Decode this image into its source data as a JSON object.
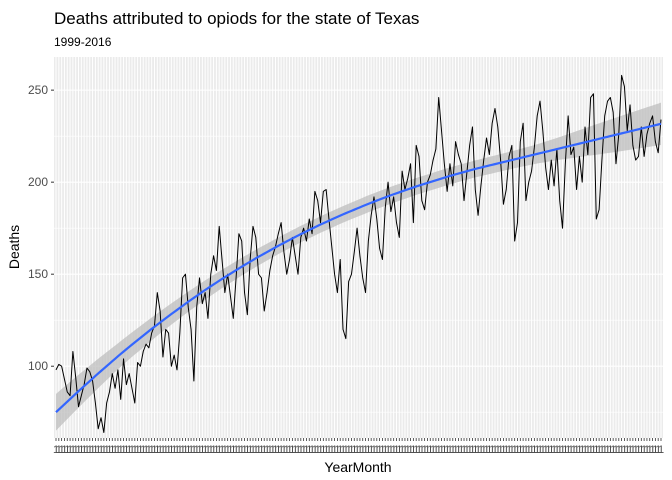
{
  "chart_data": {
    "type": "line",
    "title": "Deaths attributed to opiods for the state of Texas",
    "subtitle": "1999-2016",
    "xlabel": "YearMonth",
    "ylabel": "Deaths",
    "yticks": [
      100,
      150,
      200,
      250
    ],
    "ylim": [
      61,
      268
    ],
    "x_is_monthly_1999_2016": true,
    "n_months": 216,
    "grid": true,
    "panel_background": "#ebebeb",
    "line_color": "#000000",
    "smooth_color": "#3366ff",
    "ribbon_color": "#bdbdbd",
    "x_tick_label_text": "1",
    "series": [
      {
        "values": [
          98,
          101,
          100,
          93,
          86,
          84,
          108,
          94,
          78,
          84,
          90,
          99,
          97,
          92,
          80,
          66,
          72,
          64,
          80,
          86,
          96,
          88,
          98,
          82,
          104,
          90,
          96,
          88,
          80,
          102,
          100,
          108,
          112,
          110,
          118,
          122,
          140,
          130,
          105,
          120,
          118,
          100,
          106,
          98,
          118,
          148,
          150,
          132,
          120,
          92,
          132,
          148,
          134,
          140,
          126,
          150,
          160,
          152,
          176,
          158,
          140,
          150,
          138,
          126,
          148,
          172,
          168,
          140,
          128,
          158,
          176,
          170,
          150,
          148,
          130,
          140,
          152,
          160,
          165,
          172,
          178,
          162,
          150,
          158,
          170,
          160,
          150,
          170,
          175,
          168,
          180,
          172,
          195,
          190,
          178,
          195,
          196,
          180,
          165,
          150,
          140,
          158,
          120,
          115,
          146,
          150,
          162,
          175,
          160,
          148,
          140,
          168,
          182,
          192,
          180,
          164,
          158,
          186,
          200,
          184,
          192,
          178,
          170,
          206,
          196,
          202,
          210,
          178,
          220,
          214,
          190,
          185,
          200,
          204,
          212,
          218,
          246,
          228,
          210,
          195,
          210,
          198,
          222,
          215,
          210,
          190,
          205,
          220,
          230,
          196,
          182,
          198,
          212,
          224,
          215,
          232,
          240,
          230,
          212,
          188,
          196,
          214,
          220,
          168,
          178,
          222,
          232,
          190,
          200,
          206,
          219,
          236,
          244,
          228,
          208,
          196,
          212,
          198,
          218,
          190,
          175,
          210,
          236,
          215,
          219,
          196,
          214,
          200,
          230,
          215,
          246,
          248,
          180,
          185,
          212,
          236,
          244,
          246,
          238,
          210,
          226,
          258,
          252,
          228,
          242,
          220,
          212,
          214,
          230,
          214,
          226,
          232,
          236,
          222,
          216,
          234
        ]
      }
    ],
    "smooth": {
      "fit": [
        75,
        77.7,
        80.4,
        83.1,
        85.8,
        88.4,
        91,
        93.6,
        96.2,
        98.7,
        101.2,
        103.7,
        106.2,
        108.6,
        111,
        113.3,
        115.6,
        117.9,
        120.2,
        122.4,
        124.6,
        126.8,
        128.9,
        131,
        133.1,
        135.2,
        137.2,
        139.2,
        141.2,
        143.1,
        145,
        146.9,
        148.7,
        150.5,
        152.3,
        154.1,
        155.8,
        157.5,
        159.2,
        160.8,
        162.4,
        164,
        165.6,
        167.1,
        168.6,
        170.1,
        171.6,
        173,
        174.4,
        175.8,
        177.2,
        178.5,
        179.8,
        181.1,
        182.4,
        183.6,
        184.8,
        186,
        187.2,
        188.4,
        189.5,
        190.6,
        191.7,
        192.8,
        193.8,
        194.8,
        195.8,
        196.8,
        197.8,
        198.7,
        199.6,
        200.5,
        201.4,
        202.3,
        203.2,
        204,
        204.8,
        205.6,
        206.4,
        207.2,
        207.9,
        208.6,
        209.3,
        210,
        210.7,
        211.4,
        212.1,
        212.8,
        213.5,
        214.2,
        214.9,
        215.6,
        216.3,
        217,
        217.7,
        218.4,
        219.1,
        219.8,
        220.5,
        221.2,
        221.9,
        222.6,
        223.3,
        224,
        224.7,
        225.4,
        226.1,
        226.8,
        227.5,
        228.2,
        228.9,
        229.6,
        230.3,
        231,
        231.7
      ],
      "band": [
        10,
        9,
        8,
        7,
        6.5,
        6,
        5.6,
        5.3,
        5,
        4.8,
        4.6,
        4.5,
        4.5,
        4.5,
        4.5,
        4.6,
        4.6,
        4.6,
        4.6,
        4.6,
        4.6,
        4.7,
        4.8,
        5.2,
        6,
        7.2,
        8.4,
        9.5,
        10.5,
        11.5
      ]
    }
  }
}
